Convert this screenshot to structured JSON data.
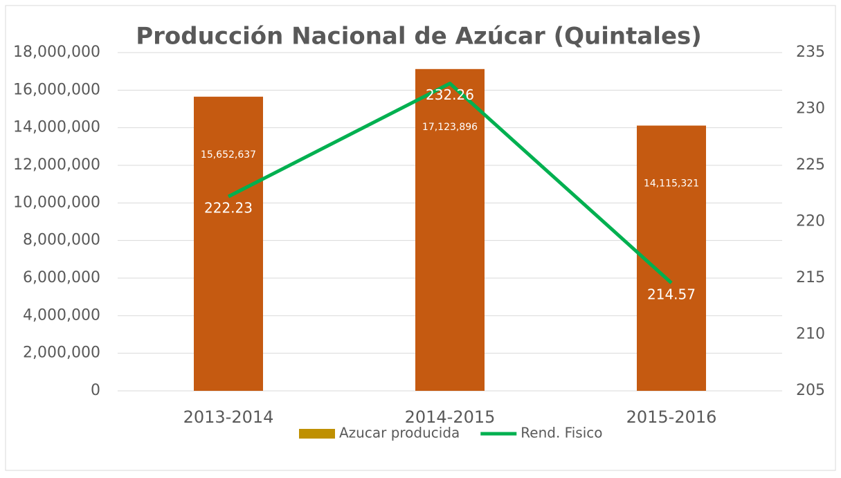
{
  "chart_data": {
    "type": "bar-line",
    "title": "Producción Nacional de Azúcar (Quintales)",
    "categories": [
      "2013-2014",
      "2014-2015",
      "2015-2016"
    ],
    "series": [
      {
        "name": "Azucar producida",
        "type": "bar",
        "color": "#c55a11",
        "legend_color": "#bf9000",
        "values": [
          15652637,
          17123896,
          14115321
        ],
        "value_labels": [
          "15,652,637",
          "17,123,896",
          "14,115,321"
        ]
      },
      {
        "name": "Rend. Fisico",
        "type": "line",
        "axis": "y2",
        "color": "#00b050",
        "values": [
          222.23,
          232.26,
          214.57
        ]
      }
    ],
    "ylim": [
      0,
      18000000
    ],
    "yticks": [
      {
        "value": 0,
        "label": "0"
      },
      {
        "value": 2000000,
        "label": "2,000,000"
      },
      {
        "value": 4000000,
        "label": "4,000,000"
      },
      {
        "value": 6000000,
        "label": "6,000,000"
      },
      {
        "value": 8000000,
        "label": "8,000,000"
      },
      {
        "value": 10000000,
        "label": "10,000,000"
      },
      {
        "value": 12000000,
        "label": "12,000,000"
      },
      {
        "value": 14000000,
        "label": "14,000,000"
      },
      {
        "value": 16000000,
        "label": "16,000,000"
      },
      {
        "value": 18000000,
        "label": "18,000,000"
      }
    ],
    "y2lim": [
      205,
      235
    ],
    "y2ticks": [
      205,
      210,
      215,
      220,
      225,
      230,
      235
    ],
    "grid": true,
    "legend": "bottom"
  }
}
